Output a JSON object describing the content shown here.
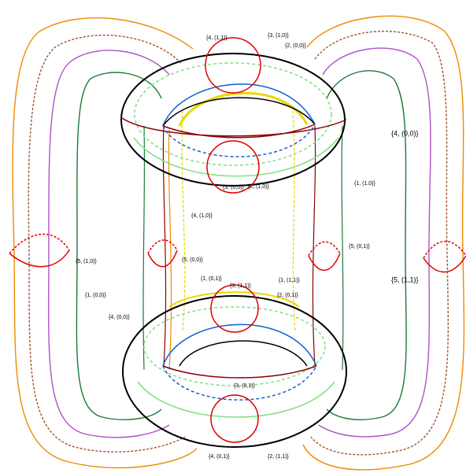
{
  "labels": [
    "{4, (1,1)}",
    "{3, (1,0)}",
    "{2, (0,0)}",
    "{4, (0,0)}",
    "{1, (1,0)}",
    "{4, (1,0)}",
    "{3, (0,0)}",
    "{2, (1,0)}",
    "{5, (1,0)}",
    "{5, (0,0)}",
    "{5, (0,1)}",
    "{1, (0,1)}",
    "{1, (1,1)}",
    "{5, (1,1)}",
    "{1, (0,0)}",
    "{3, (1,1)}",
    "{2, (0,1)}",
    "{4, (0,0)}",
    "{3, (0,1)}",
    "{4, (0,1)}",
    "{2, (1,1)}"
  ]
}
